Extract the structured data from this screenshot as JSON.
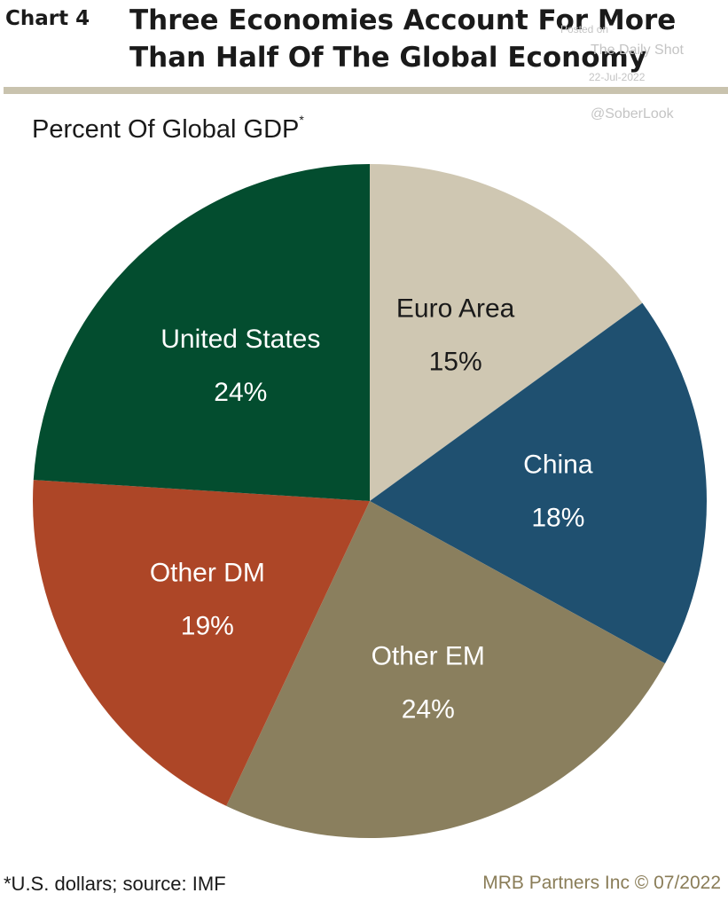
{
  "header": {
    "chart_number": "Chart 4",
    "title_line1": "Three Economies Account For More",
    "title_line2": "Than Half Of The Global Economy"
  },
  "watermark": {
    "posted_on": "Posted on",
    "publication": "The Daily Shot",
    "date": "22-Jul-2022",
    "handle": "@SoberLook"
  },
  "subtitle": {
    "text": "Percent Of Global GDP",
    "marker": "*"
  },
  "footer": {
    "footnote": "*U.S. dollars; source: IMF",
    "credit": "MRB Partners Inc © 07/2022"
  },
  "chart_data": {
    "type": "pie",
    "title": "Three Economies Account For More Than Half Of The Global Economy",
    "subtitle": "Percent Of Global GDP*",
    "start_angle_deg": 0,
    "direction": "clockwise",
    "slices": [
      {
        "label": "Euro Area",
        "value": 15,
        "value_label": "15%",
        "color": "#cfc7b2",
        "text_color": "#1a1a1a"
      },
      {
        "label": "China",
        "value": 18,
        "value_label": "18%",
        "color": "#1f5070",
        "text_color": "#ffffff"
      },
      {
        "label": "Other EM",
        "value": 24,
        "value_label": "24%",
        "color": "#8a7f5e",
        "text_color": "#ffffff"
      },
      {
        "label": "Other DM",
        "value": 19,
        "value_label": "19%",
        "color": "#ad4627",
        "text_color": "#ffffff"
      },
      {
        "label": "United States",
        "value": 24,
        "value_label": "24%",
        "color": "#034d2f",
        "text_color": "#ffffff"
      }
    ]
  }
}
